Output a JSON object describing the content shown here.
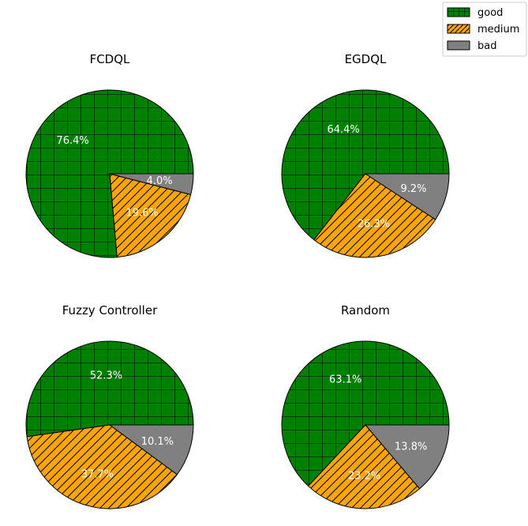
{
  "chart_data": [
    {
      "type": "pie",
      "title": "FCDQL",
      "categories": [
        "good",
        "medium",
        "bad"
      ],
      "values": [
        76.4,
        19.6,
        4.0
      ],
      "labels": [
        "76.4%",
        "19.6%",
        "4.0%"
      ]
    },
    {
      "type": "pie",
      "title": "EGDQL",
      "categories": [
        "good",
        "medium",
        "bad"
      ],
      "values": [
        64.4,
        26.3,
        9.2
      ],
      "labels": [
        "64.4%",
        "26.3%",
        "9.2%"
      ]
    },
    {
      "type": "pie",
      "title": "Fuzzy Controller",
      "categories": [
        "good",
        "medium",
        "bad"
      ],
      "values": [
        52.3,
        37.7,
        10.1
      ],
      "labels": [
        "52.3%",
        "37.7%",
        "10.1%"
      ]
    },
    {
      "type": "pie",
      "title": "Random",
      "categories": [
        "good",
        "medium",
        "bad"
      ],
      "values": [
        63.1,
        23.2,
        13.8
      ],
      "labels": [
        "63.1%",
        "23.2%",
        "13.8%"
      ]
    }
  ],
  "legend": {
    "placement": "top-right",
    "items": [
      {
        "label": "good",
        "color": "#008000",
        "hatch": "grid"
      },
      {
        "label": "medium",
        "color": "#ffa500",
        "hatch": "diagonal"
      },
      {
        "label": "bad",
        "color": "#808080",
        "hatch": "none"
      }
    ]
  }
}
